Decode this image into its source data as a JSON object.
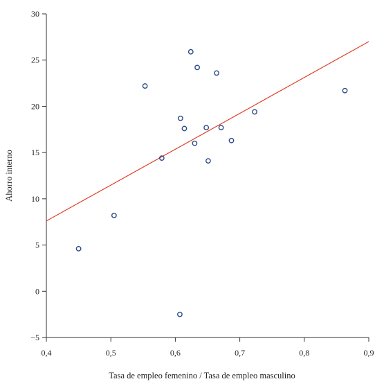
{
  "chart_data": {
    "type": "scatter",
    "title": "",
    "xlabel": "Tasa de empleo femenino / Tasa de empleo masculino",
    "ylabel": "Ahorro interno",
    "xlim": [
      0.4,
      0.9
    ],
    "ylim": [
      -5,
      30
    ],
    "x_ticks": [
      {
        "value": 0.4,
        "label": "0,4"
      },
      {
        "value": 0.5,
        "label": "0,5"
      },
      {
        "value": 0.6,
        "label": "0,6"
      },
      {
        "value": 0.7,
        "label": "0,7"
      },
      {
        "value": 0.8,
        "label": "0,8"
      },
      {
        "value": 0.9,
        "label": "0,9"
      }
    ],
    "y_ticks": [
      {
        "value": -5,
        "label": "−5"
      },
      {
        "value": 0,
        "label": "0"
      },
      {
        "value": 5,
        "label": "5"
      },
      {
        "value": 10,
        "label": "10"
      },
      {
        "value": 15,
        "label": "15"
      },
      {
        "value": 20,
        "label": "20"
      },
      {
        "value": 25,
        "label": "25"
      },
      {
        "value": 30,
        "label": "30"
      }
    ],
    "grid": false,
    "series": [
      {
        "type": "scatter",
        "color": "#2a4a8a",
        "points": [
          {
            "x": 0.45,
            "y": 4.6
          },
          {
            "x": 0.505,
            "y": 8.2
          },
          {
            "x": 0.553,
            "y": 22.2
          },
          {
            "x": 0.579,
            "y": 14.4
          },
          {
            "x": 0.607,
            "y": -2.5
          },
          {
            "x": 0.608,
            "y": 18.7
          },
          {
            "x": 0.614,
            "y": 17.6
          },
          {
            "x": 0.624,
            "y": 25.9
          },
          {
            "x": 0.63,
            "y": 16.0
          },
          {
            "x": 0.634,
            "y": 24.2
          },
          {
            "x": 0.648,
            "y": 17.7
          },
          {
            "x": 0.651,
            "y": 14.1
          },
          {
            "x": 0.664,
            "y": 23.6
          },
          {
            "x": 0.671,
            "y": 17.7
          },
          {
            "x": 0.687,
            "y": 16.3
          },
          {
            "x": 0.723,
            "y": 19.4
          },
          {
            "x": 0.863,
            "y": 21.7
          }
        ]
      },
      {
        "type": "line",
        "color": "#e0402a",
        "x": [
          0.4,
          0.9
        ],
        "y": [
          7.6,
          27.0
        ]
      }
    ]
  }
}
